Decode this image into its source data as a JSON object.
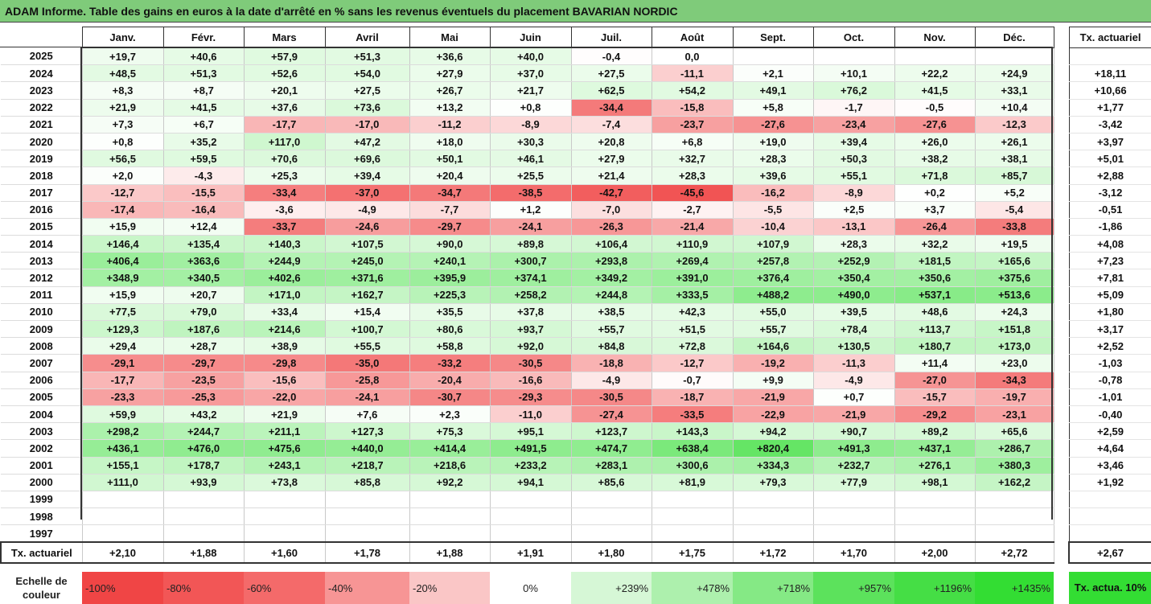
{
  "title": "ADAM Informe. Table des gains en euros à la date d'arrêté en % sans les revenus éventuels du placement BAVARIAN NORDIC",
  "months": [
    "Janv.",
    "Févr.",
    "Mars",
    "Avril",
    "Mai",
    "Juin",
    "Juil.",
    "Août",
    "Sept.",
    "Oct.",
    "Nov.",
    "Déc."
  ],
  "side_header": "Tx. actuariel",
  "rows": [
    {
      "year": "2025",
      "v": [
        "+19,7",
        "+40,6",
        "+57,9",
        "+51,3",
        "+36,6",
        "+40,0",
        "-0,4",
        "0,0",
        "",
        "",
        "",
        ""
      ],
      "tx": ""
    },
    {
      "year": "2024",
      "v": [
        "+48,5",
        "+51,3",
        "+52,6",
        "+54,0",
        "+27,9",
        "+37,0",
        "+27,5",
        "-11,1",
        "+2,1",
        "+10,1",
        "+22,2",
        "+24,9"
      ],
      "tx": "+18,11"
    },
    {
      "year": "2023",
      "v": [
        "+8,3",
        "+8,7",
        "+20,1",
        "+27,5",
        "+26,7",
        "+21,7",
        "+62,5",
        "+54,2",
        "+49,1",
        "+76,2",
        "+41,5",
        "+33,1"
      ],
      "tx": "+10,66"
    },
    {
      "year": "2022",
      "v": [
        "+21,9",
        "+41,5",
        "+37,6",
        "+73,6",
        "+13,2",
        "+0,8",
        "-34,4",
        "-15,8",
        "+5,8",
        "-1,7",
        "-0,5",
        "+10,4"
      ],
      "tx": "+1,77"
    },
    {
      "year": "2021",
      "v": [
        "+7,3",
        "+6,7",
        "-17,7",
        "-17,0",
        "-11,2",
        "-8,9",
        "-7,4",
        "-23,7",
        "-27,6",
        "-23,4",
        "-27,6",
        "-12,3"
      ],
      "tx": "-3,42"
    },
    {
      "year": "2020",
      "v": [
        "+0,8",
        "+35,2",
        "+117,0",
        "+47,2",
        "+18,0",
        "+30,3",
        "+20,8",
        "+6,8",
        "+19,0",
        "+39,4",
        "+26,0",
        "+26,1"
      ],
      "tx": "+3,97"
    },
    {
      "year": "2019",
      "v": [
        "+56,5",
        "+59,5",
        "+70,6",
        "+69,6",
        "+50,1",
        "+46,1",
        "+27,9",
        "+32,7",
        "+28,3",
        "+50,3",
        "+38,2",
        "+38,1"
      ],
      "tx": "+5,01"
    },
    {
      "year": "2018",
      "v": [
        "+2,0",
        "-4,3",
        "+25,3",
        "+39,4",
        "+20,4",
        "+25,5",
        "+21,4",
        "+28,3",
        "+39,6",
        "+55,1",
        "+71,8",
        "+85,7"
      ],
      "tx": "+2,88"
    },
    {
      "year": "2017",
      "v": [
        "-12,7",
        "-15,5",
        "-33,4",
        "-37,0",
        "-34,7",
        "-38,5",
        "-42,7",
        "-45,6",
        "-16,2",
        "-8,9",
        "+0,2",
        "+5,2"
      ],
      "tx": "-3,12"
    },
    {
      "year": "2016",
      "v": [
        "-17,4",
        "-16,4",
        "-3,6",
        "-4,9",
        "-7,7",
        "+1,2",
        "-7,0",
        "-2,7",
        "-5,5",
        "+2,5",
        "+3,7",
        "-5,4"
      ],
      "tx": "-0,51"
    },
    {
      "year": "2015",
      "v": [
        "+15,9",
        "+12,4",
        "-33,7",
        "-24,6",
        "-29,7",
        "-24,1",
        "-26,3",
        "-21,4",
        "-10,4",
        "-13,1",
        "-26,4",
        "-33,8"
      ],
      "tx": "-1,86"
    },
    {
      "year": "2014",
      "v": [
        "+146,4",
        "+135,4",
        "+140,3",
        "+107,5",
        "+90,0",
        "+89,8",
        "+106,4",
        "+110,9",
        "+107,9",
        "+28,3",
        "+32,2",
        "+19,5"
      ],
      "tx": "+4,08"
    },
    {
      "year": "2013",
      "v": [
        "+406,4",
        "+363,6",
        "+244,9",
        "+245,0",
        "+240,1",
        "+300,7",
        "+293,8",
        "+269,4",
        "+257,8",
        "+252,9",
        "+181,5",
        "+165,6"
      ],
      "tx": "+7,23"
    },
    {
      "year": "2012",
      "v": [
        "+348,9",
        "+340,5",
        "+402,6",
        "+371,6",
        "+395,9",
        "+374,1",
        "+349,2",
        "+391,0",
        "+376,4",
        "+350,4",
        "+350,6",
        "+375,6"
      ],
      "tx": "+7,81"
    },
    {
      "year": "2011",
      "v": [
        "+15,9",
        "+20,7",
        "+171,0",
        "+162,7",
        "+225,3",
        "+258,2",
        "+244,8",
        "+333,5",
        "+488,2",
        "+490,0",
        "+537,1",
        "+513,6"
      ],
      "tx": "+5,09"
    },
    {
      "year": "2010",
      "v": [
        "+77,5",
        "+79,0",
        "+33,4",
        "+15,4",
        "+35,5",
        "+37,8",
        "+38,5",
        "+42,3",
        "+55,0",
        "+39,5",
        "+48,6",
        "+24,3"
      ],
      "tx": "+1,80"
    },
    {
      "year": "2009",
      "v": [
        "+129,3",
        "+187,6",
        "+214,6",
        "+100,7",
        "+80,6",
        "+93,7",
        "+55,7",
        "+51,5",
        "+55,7",
        "+78,4",
        "+113,7",
        "+151,8"
      ],
      "tx": "+3,17"
    },
    {
      "year": "2008",
      "v": [
        "+29,4",
        "+28,7",
        "+38,9",
        "+55,5",
        "+58,8",
        "+92,0",
        "+84,8",
        "+72,8",
        "+164,6",
        "+130,5",
        "+180,7",
        "+173,0"
      ],
      "tx": "+2,52"
    },
    {
      "year": "2007",
      "v": [
        "-29,1",
        "-29,7",
        "-29,8",
        "-35,0",
        "-33,2",
        "-30,5",
        "-18,8",
        "-12,7",
        "-19,2",
        "-11,3",
        "+11,4",
        "+23,0"
      ],
      "tx": "-1,03"
    },
    {
      "year": "2006",
      "v": [
        "-17,7",
        "-23,5",
        "-15,6",
        "-25,8",
        "-20,4",
        "-16,6",
        "-4,9",
        "-0,7",
        "+9,9",
        "-4,9",
        "-27,0",
        "-34,3"
      ],
      "tx": "-0,78"
    },
    {
      "year": "2005",
      "v": [
        "-23,3",
        "-25,3",
        "-22,0",
        "-24,1",
        "-30,7",
        "-29,3",
        "-30,5",
        "-18,7",
        "-21,9",
        "+0,7",
        "-15,7",
        "-19,7"
      ],
      "tx": "-1,01"
    },
    {
      "year": "2004",
      "v": [
        "+59,9",
        "+43,2",
        "+21,9",
        "+7,6",
        "+2,3",
        "-11,0",
        "-27,4",
        "-33,5",
        "-22,9",
        "-21,9",
        "-29,2",
        "-23,1"
      ],
      "tx": "-0,40"
    },
    {
      "year": "2003",
      "v": [
        "+298,2",
        "+244,7",
        "+211,1",
        "+127,3",
        "+75,3",
        "+95,1",
        "+123,7",
        "+143,3",
        "+94,2",
        "+90,7",
        "+89,2",
        "+65,6"
      ],
      "tx": "+2,59"
    },
    {
      "year": "2002",
      "v": [
        "+436,1",
        "+476,0",
        "+475,6",
        "+440,0",
        "+414,4",
        "+491,5",
        "+474,7",
        "+638,4",
        "+820,4",
        "+491,3",
        "+437,1",
        "+286,7"
      ],
      "tx": "+4,64"
    },
    {
      "year": "2001",
      "v": [
        "+155,1",
        "+178,7",
        "+243,1",
        "+218,7",
        "+218,6",
        "+233,2",
        "+283,1",
        "+300,6",
        "+334,3",
        "+232,7",
        "+276,1",
        "+380,3"
      ],
      "tx": "+3,46"
    },
    {
      "year": "2000",
      "v": [
        "+111,0",
        "+93,9",
        "+73,8",
        "+85,8",
        "+92,2",
        "+94,1",
        "+85,6",
        "+81,9",
        "+79,3",
        "+77,9",
        "+98,1",
        "+162,2"
      ],
      "tx": "+1,92"
    },
    {
      "year": "1999",
      "v": [
        "",
        "",
        "",
        "",
        "",
        "",
        "",
        "",
        "",
        "",
        "",
        ""
      ],
      "tx": ""
    },
    {
      "year": "1998",
      "v": [
        "",
        "",
        "",
        "",
        "",
        "",
        "",
        "",
        "",
        "",
        "",
        ""
      ],
      "tx": ""
    },
    {
      "year": "1997",
      "v": [
        "",
        "",
        "",
        "",
        "",
        "",
        "",
        "",
        "",
        "",
        "",
        ""
      ],
      "tx": ""
    }
  ],
  "totals": {
    "label": "Tx. actuariel",
    "v": [
      "+2,10",
      "+1,88",
      "+1,60",
      "+1,78",
      "+1,88",
      "+1,91",
      "+1,80",
      "+1,75",
      "+1,72",
      "+1,70",
      "+2,00",
      "+2,72"
    ],
    "tx": "+2,67"
  },
  "scale": {
    "label": "Echelle de couleur",
    "cells": [
      {
        "text": "-100%",
        "color": "#f04545",
        "kind": "neg"
      },
      {
        "text": "-80%",
        "color": "#f25656",
        "kind": "neg"
      },
      {
        "text": "-60%",
        "color": "#f46a6a",
        "kind": "neg"
      },
      {
        "text": "-40%",
        "color": "#f79595",
        "kind": "neg"
      },
      {
        "text": "-20%",
        "color": "#fac6c6",
        "kind": "neg"
      },
      {
        "text": "0%",
        "color": "#ffffff",
        "kind": "zero"
      },
      {
        "text": "+239%",
        "color": "#d6f7d6",
        "kind": "pos"
      },
      {
        "text": "+478%",
        "color": "#adf0ad",
        "kind": "pos"
      },
      {
        "text": "+718%",
        "color": "#85e985",
        "kind": "pos"
      },
      {
        "text": "+957%",
        "color": "#5ce25c",
        "kind": "pos"
      },
      {
        "text": "+1196%",
        "color": "#45de45",
        "kind": "pos"
      },
      {
        "text": "+1435%",
        "color": "#33dd33",
        "kind": "pos"
      }
    ],
    "side": "Tx. actua. 10%",
    "side_color": "#33dd33"
  },
  "colors": {
    "title_bg": "#7fcb7a",
    "neg_max": "#f04545",
    "pos_max": "#33dd33"
  }
}
